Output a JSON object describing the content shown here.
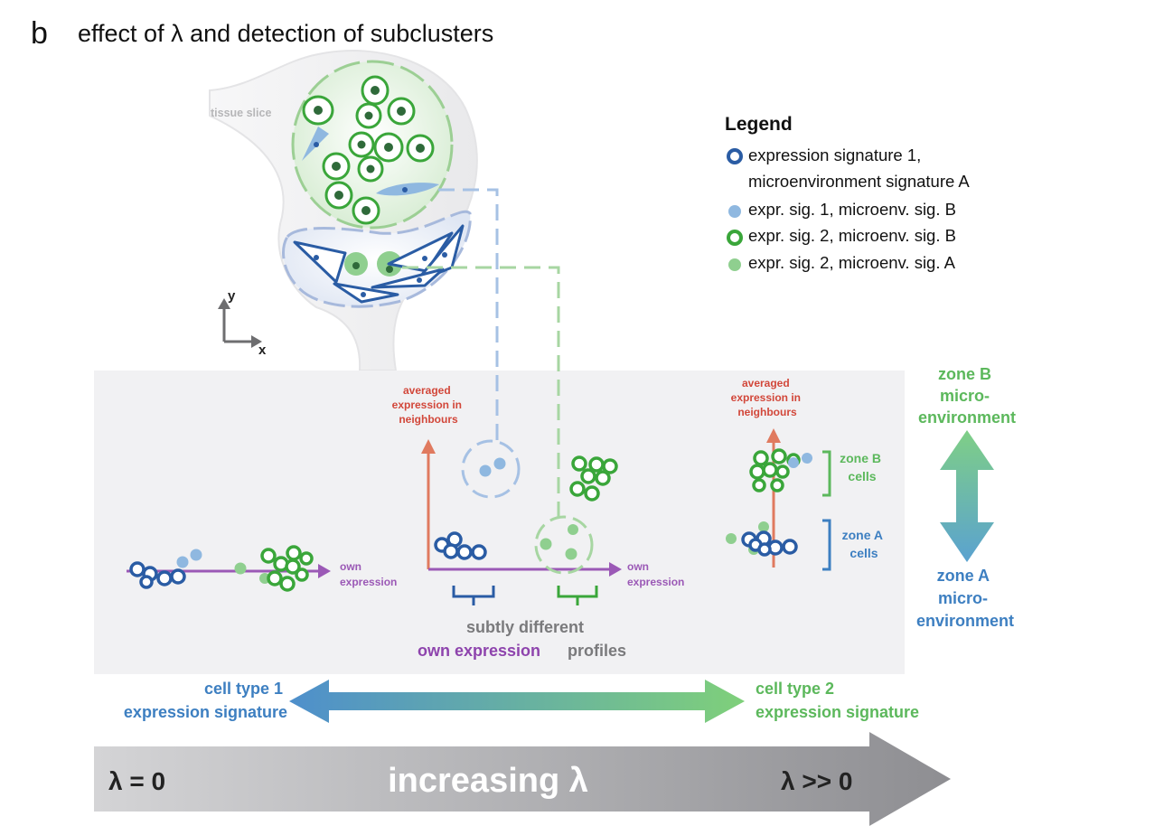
{
  "panel": {
    "letter": "b",
    "title": "effect of λ and detection of subclusters"
  },
  "tissue": {
    "label": "tissue slice",
    "axis_y": "y",
    "axis_x": "x"
  },
  "legend": {
    "title": "Legend",
    "items": [
      {
        "line1": "expression signature 1,",
        "line2": "microenvironment signature A"
      },
      {
        "line1": "expr. sig. 1, microenv. sig. B"
      },
      {
        "line1": "expr. sig. 2, microenv. sig. B"
      },
      {
        "line1": "expr. sig. 2, microenv. sig. A"
      }
    ]
  },
  "plots": {
    "own_expression": [
      "own",
      "expression"
    ],
    "averaged_neighbours": [
      "averaged",
      "expression in",
      "neighbours"
    ],
    "subtly_different": "subtly different",
    "own_expression_phrase": "own expression",
    "profiles": "profiles",
    "zone_b_cells": [
      "zone B",
      "cells"
    ],
    "zone_a_cells": [
      "zone A",
      "cells"
    ]
  },
  "zones": {
    "zone_b": [
      "zone B",
      "micro-",
      "environment"
    ],
    "zone_a": [
      "zone A",
      "micro-",
      "environment"
    ]
  },
  "cell_types": {
    "type1": [
      "cell type 1",
      "expression signature"
    ],
    "type2": [
      "cell type 2",
      "expression signature"
    ]
  },
  "lambda_bar": {
    "left": "λ = 0",
    "center": "increasing λ",
    "right": "λ >> 0"
  },
  "colors": {
    "dark_blue": "#2a5ca4",
    "light_blue": "#8fb8e0",
    "green": "#3aa63a",
    "light_green": "#8fcf8f",
    "red_axis": "#e07a5f",
    "red_label": "#d2473a",
    "purple": "#9b59b6",
    "blue_text": "#3d7fc1",
    "green_text": "#5cb85c"
  }
}
